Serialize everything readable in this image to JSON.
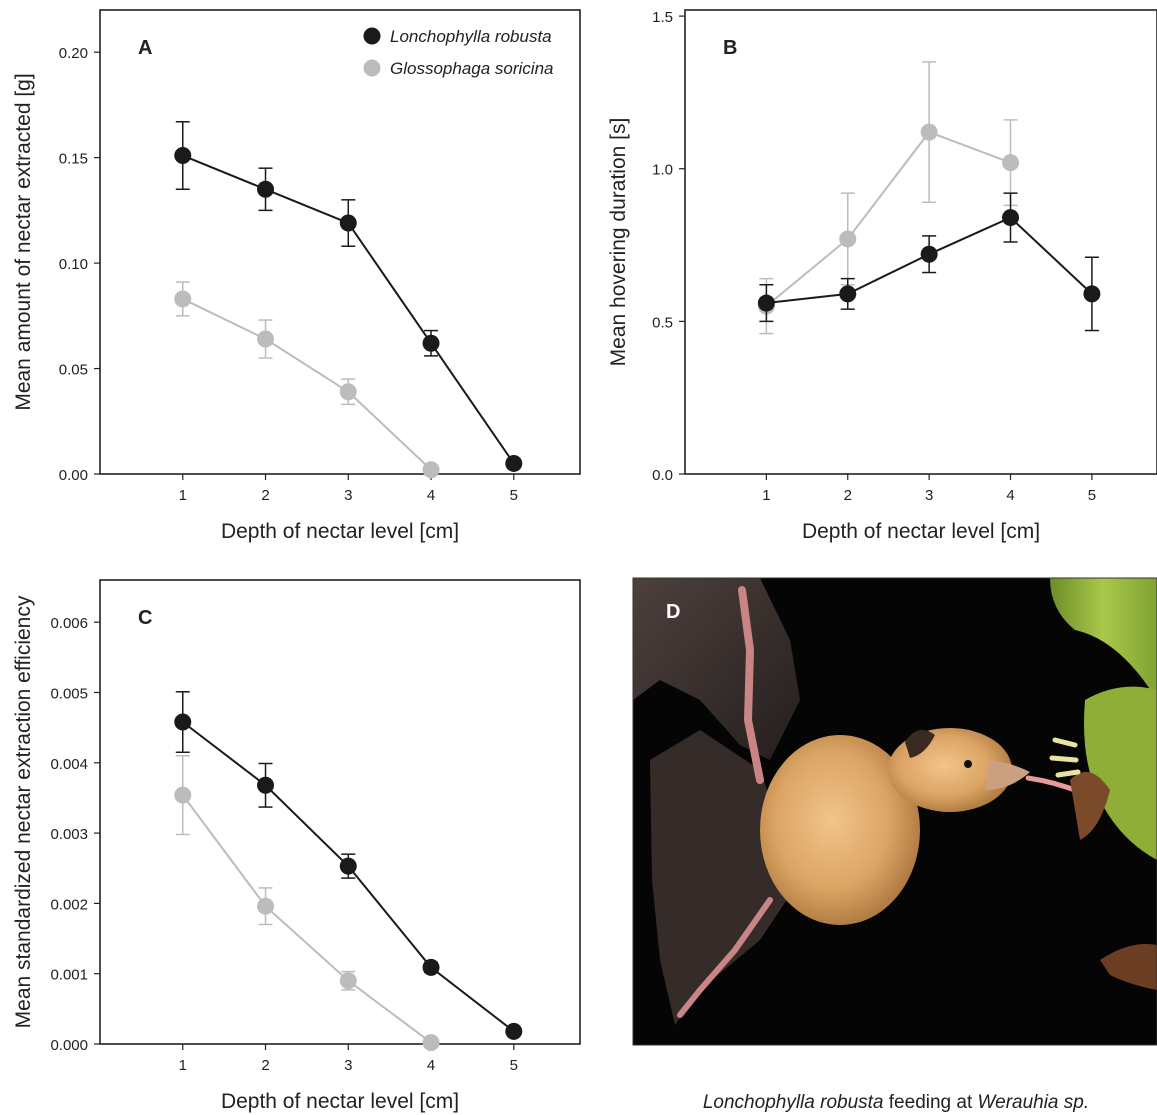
{
  "chart_data": [
    {
      "type": "line",
      "panel_label": "A",
      "xlabel": "Depth of nectar level [cm]",
      "ylabel": "Mean amount of nectar extracted [g]",
      "x": [
        1,
        2,
        3,
        4,
        5
      ],
      "xlim": [
        0.0,
        5.8
      ],
      "ylim": [
        0.0,
        0.22
      ],
      "yticks": [
        "0.00",
        "0.05",
        "0.10",
        "0.15",
        "0.20"
      ],
      "xticks": [
        "1",
        "2",
        "3",
        "4",
        "5"
      ],
      "legend_position": "top-right",
      "series": [
        {
          "name": "Lonchophylla robusta",
          "color": "#1a1a1a",
          "values": [
            0.151,
            0.135,
            0.119,
            0.062,
            0.005
          ],
          "error": [
            0.016,
            0.01,
            0.011,
            0.006,
            0.002
          ]
        },
        {
          "name": "Glossophaga soricina",
          "color": "#bcbcbc",
          "values": [
            0.083,
            0.064,
            0.039,
            0.002,
            null
          ],
          "error": [
            0.008,
            0.009,
            0.006,
            0.001,
            null
          ]
        }
      ]
    },
    {
      "type": "line",
      "panel_label": "B",
      "xlabel": "Depth of nectar level [cm]",
      "ylabel": "Mean hovering duration [s]",
      "x": [
        1,
        2,
        3,
        4,
        5
      ],
      "xlim": [
        0.0,
        5.8
      ],
      "ylim": [
        0.0,
        1.52
      ],
      "yticks": [
        "0.0",
        "0.5",
        "1.0",
        "1.5"
      ],
      "xticks": [
        "1",
        "2",
        "3",
        "4",
        "5"
      ],
      "series": [
        {
          "name": "Lonchophylla robusta",
          "color": "#1a1a1a",
          "values": [
            0.56,
            0.59,
            0.72,
            0.84,
            0.59
          ],
          "error": [
            0.06,
            0.05,
            0.06,
            0.08,
            0.12
          ]
        },
        {
          "name": "Glossophaga soricina",
          "color": "#bcbcbc",
          "values": [
            0.55,
            0.77,
            1.12,
            1.02,
            null
          ],
          "error": [
            0.09,
            0.15,
            0.23,
            0.14,
            null
          ]
        }
      ]
    },
    {
      "type": "line",
      "panel_label": "C",
      "xlabel": "Depth of nectar level [cm]",
      "ylabel": "Mean standardized nectar extraction efficiency",
      "x": [
        1,
        2,
        3,
        4,
        5
      ],
      "xlim": [
        0.0,
        5.8
      ],
      "ylim": [
        0.0,
        0.0066
      ],
      "yticks": [
        "0.000",
        "0.001",
        "0.002",
        "0.003",
        "0.004",
        "0.005",
        "0.006"
      ],
      "xticks": [
        "1",
        "2",
        "3",
        "4",
        "5"
      ],
      "series": [
        {
          "name": "Lonchophylla robusta",
          "color": "#1a1a1a",
          "values": [
            0.00458,
            0.00368,
            0.00253,
            0.00109,
            0.00018
          ],
          "error": [
            0.00043,
            0.00031,
            0.00017,
            7e-05,
            5e-05
          ]
        },
        {
          "name": "Glossophaga soricina",
          "color": "#bcbcbc",
          "values": [
            0.00354,
            0.00196,
            0.0009,
            2e-05,
            null
          ],
          "error": [
            0.00056,
            0.00026,
            0.00013,
            1e-05,
            null
          ]
        }
      ]
    }
  ],
  "photo": {
    "panel_label": "D",
    "caption_species": "Lonchophylla robusta",
    "caption_middle": " feeding at ",
    "caption_plant": "Werauhia sp."
  }
}
